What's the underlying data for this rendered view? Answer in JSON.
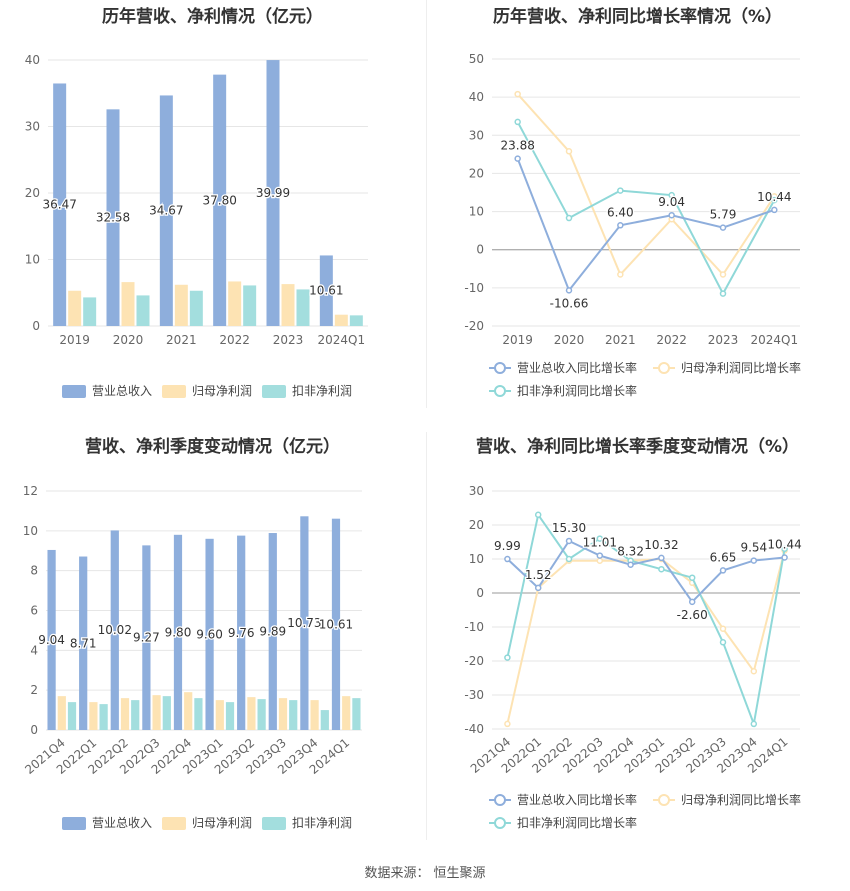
{
  "source": {
    "label": "数据来源：",
    "value": "恒生聚源"
  },
  "colors": {
    "revenue": "#8eaedc",
    "netprofit": "#fde3b3",
    "deducted": "#a3dede",
    "revenue_line": "#8eaedc",
    "netprofit_line": "#fde3b3",
    "deducted_line": "#8fd8d8"
  },
  "chart_data": [
    {
      "type": "bar",
      "title": "历年营收、净利情况（亿元）",
      "categories": [
        "2019",
        "2020",
        "2021",
        "2022",
        "2023",
        "2024Q1"
      ],
      "ylim": [
        0,
        40
      ],
      "yticks": [
        0,
        10,
        20,
        30,
        40
      ],
      "label_series": 0,
      "series": [
        {
          "name": "营业总收入",
          "values": [
            36.47,
            32.58,
            34.67,
            37.8,
            39.99,
            10.61
          ],
          "labels": [
            "36.47",
            "32.58",
            "34.67",
            "37.80",
            "39.99",
            "10.61"
          ]
        },
        {
          "name": "归母净利润",
          "values": [
            5.3,
            6.6,
            6.2,
            6.7,
            6.3,
            1.7
          ]
        },
        {
          "name": "扣非净利润",
          "values": [
            4.3,
            4.6,
            5.3,
            6.1,
            5.5,
            1.6
          ]
        }
      ]
    },
    {
      "type": "line",
      "title": "历年营收、净利同比增长率情况（%）",
      "categories": [
        "2019",
        "2020",
        "2021",
        "2022",
        "2023",
        "2024Q1"
      ],
      "ylim": [
        -20,
        50
      ],
      "yticks": [
        -20,
        -10,
        0,
        10,
        20,
        30,
        40,
        50
      ],
      "label_series": 0,
      "series": [
        {
          "name": "营业总收入同比增长率",
          "values": [
            23.88,
            -10.66,
            6.4,
            9.04,
            5.79,
            10.44
          ],
          "labels": [
            "23.88",
            "-10.66",
            "6.40",
            "9.04",
            "5.79",
            "10.44"
          ]
        },
        {
          "name": "归母净利润同比增长率",
          "values": [
            40.8,
            25.8,
            -6.5,
            8.0,
            -6.5,
            14.0
          ]
        },
        {
          "name": "扣非净利润同比增长率",
          "values": [
            33.5,
            8.3,
            15.5,
            14.3,
            -11.5,
            13.0
          ]
        }
      ]
    },
    {
      "type": "bar",
      "title": "营收、净利季度变动情况（亿元）",
      "categories": [
        "2021Q4",
        "2022Q1",
        "2022Q2",
        "2022Q3",
        "2022Q4",
        "2023Q1",
        "2023Q2",
        "2023Q3",
        "2023Q4",
        "2024Q1"
      ],
      "ylim": [
        0,
        12
      ],
      "yticks": [
        0,
        2,
        4,
        6,
        8,
        10,
        12
      ],
      "label_series": 0,
      "series": [
        {
          "name": "营业总收入",
          "values": [
            9.04,
            8.71,
            10.02,
            9.27,
            9.8,
            9.6,
            9.76,
            9.89,
            10.73,
            10.61
          ],
          "labels": [
            "9.04",
            "8.71",
            "10.02",
            "9.27",
            "9.80",
            "9.60",
            "9.76",
            "9.89",
            "10.73",
            "10.61"
          ]
        },
        {
          "name": "归母净利润",
          "values": [
            1.7,
            1.4,
            1.6,
            1.75,
            1.9,
            1.5,
            1.65,
            1.6,
            1.5,
            1.7
          ]
        },
        {
          "name": "扣非净利润",
          "values": [
            1.4,
            1.3,
            1.5,
            1.7,
            1.6,
            1.4,
            1.55,
            1.5,
            1.0,
            1.6
          ]
        }
      ]
    },
    {
      "type": "line",
      "title": "营收、净利同比增长率季度变动情况（%）",
      "categories": [
        "2021Q4",
        "2022Q1",
        "2022Q2",
        "2022Q3",
        "2022Q4",
        "2023Q1",
        "2023Q2",
        "2023Q3",
        "2023Q4",
        "2024Q1"
      ],
      "ylim": [
        -40,
        30
      ],
      "yticks": [
        -40,
        -30,
        -20,
        -10,
        0,
        10,
        20,
        30
      ],
      "label_series": 0,
      "series": [
        {
          "name": "营业总收入同比增长率",
          "values": [
            9.99,
            1.52,
            15.3,
            11.01,
            8.32,
            10.32,
            -2.6,
            6.65,
            9.54,
            10.44
          ],
          "labels": [
            "9.99",
            "1.52",
            "15.30",
            "11.01",
            "8.32",
            "10.32",
            "-2.60",
            "6.65",
            "9.54",
            "10.44"
          ]
        },
        {
          "name": "归母净利润同比增长率",
          "values": [
            -38.5,
            1.5,
            9.5,
            9.5,
            9.5,
            10.0,
            3.0,
            -10.5,
            -23.0,
            12.5
          ]
        },
        {
          "name": "扣非净利润同比增长率",
          "values": [
            -19.0,
            23.0,
            10.0,
            16.0,
            9.5,
            7.0,
            4.5,
            -14.5,
            -38.5,
            13.0
          ]
        }
      ]
    }
  ]
}
